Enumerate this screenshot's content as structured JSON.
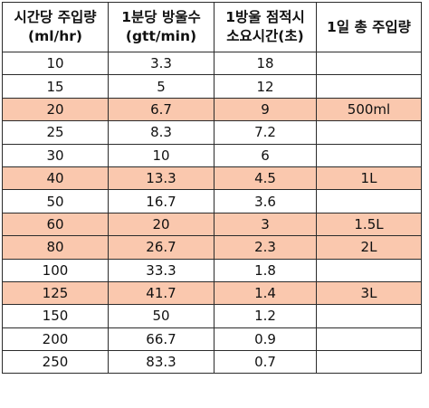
{
  "table": {
    "headers": [
      [
        "시간당 주입량",
        "(ml/hr)"
      ],
      [
        "1분당 방울수",
        "(gtt/min)"
      ],
      [
        "1방울 점적시",
        "소요시간(초)"
      ],
      [
        "1일 총 주입량",
        ""
      ]
    ],
    "rows": [
      {
        "cells": [
          "10",
          "3.3",
          "18",
          ""
        ],
        "highlight": false
      },
      {
        "cells": [
          "15",
          "5",
          "12",
          ""
        ],
        "highlight": false
      },
      {
        "cells": [
          "20",
          "6.7",
          "9",
          "500ml"
        ],
        "highlight": true
      },
      {
        "cells": [
          "25",
          "8.3",
          "7.2",
          ""
        ],
        "highlight": false
      },
      {
        "cells": [
          "30",
          "10",
          "6",
          ""
        ],
        "highlight": false
      },
      {
        "cells": [
          "40",
          "13.3",
          "4.5",
          "1L"
        ],
        "highlight": true
      },
      {
        "cells": [
          "50",
          "16.7",
          "3.6",
          ""
        ],
        "highlight": false
      },
      {
        "cells": [
          "60",
          "20",
          "3",
          "1.5L"
        ],
        "highlight": true
      },
      {
        "cells": [
          "80",
          "26.7",
          "2.3",
          "2L"
        ],
        "highlight": true
      },
      {
        "cells": [
          "100",
          "33.3",
          "1.8",
          ""
        ],
        "highlight": false
      },
      {
        "cells": [
          "125",
          "41.7",
          "1.4",
          "3L"
        ],
        "highlight": true
      },
      {
        "cells": [
          "150",
          "50",
          "1.2",
          ""
        ],
        "highlight": false
      },
      {
        "cells": [
          "200",
          "66.7",
          "0.9",
          ""
        ],
        "highlight": false
      },
      {
        "cells": [
          "250",
          "83.3",
          "0.7",
          ""
        ],
        "highlight": false
      }
    ]
  },
  "colors": {
    "highlight": "#fac8ae",
    "border": "#2b2b2b"
  }
}
